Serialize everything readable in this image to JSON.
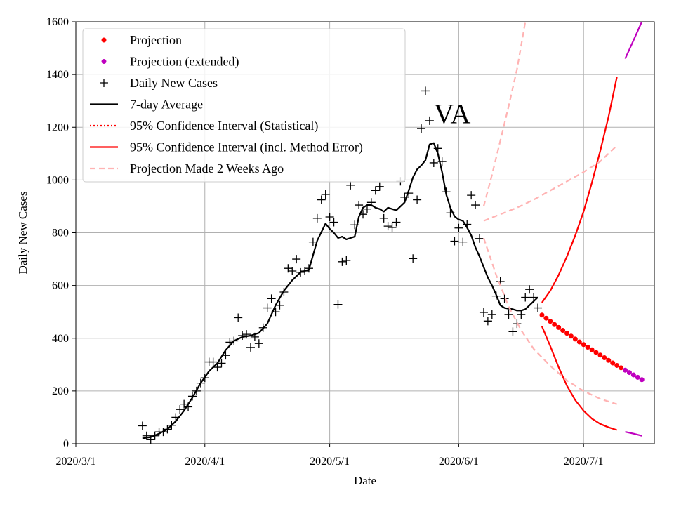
{
  "chart_data": {
    "type": "line",
    "title": "",
    "annotation": "VA",
    "xlabel": "Date",
    "ylabel": "Daily New Cases",
    "x_axis": {
      "start_date": "2020-03-01",
      "end_date": "2020-07-18",
      "unit": "days since 2020-03-01",
      "xlim": [
        0,
        139
      ]
    },
    "ylim": [
      0,
      1600
    ],
    "grid": true,
    "legend_position": "top-left",
    "x_ticks": [
      {
        "label": "2020/3/1",
        "value": 0
      },
      {
        "label": "2020/4/1",
        "value": 31
      },
      {
        "label": "2020/5/1",
        "value": 61
      },
      {
        "label": "2020/6/1",
        "value": 92
      },
      {
        "label": "2020/7/1",
        "value": 122
      }
    ],
    "y_ticks": [
      {
        "label": "0",
        "value": 0
      },
      {
        "label": "200",
        "value": 200
      },
      {
        "label": "400",
        "value": 400
      },
      {
        "label": "600",
        "value": 600
      },
      {
        "label": "800",
        "value": 800
      },
      {
        "label": "1000",
        "value": 1000
      },
      {
        "label": "1200",
        "value": 1200
      },
      {
        "label": "1400",
        "value": 1400
      },
      {
        "label": "1600",
        "value": 1600
      }
    ],
    "legend": [
      {
        "label": "Projection",
        "style": "dot",
        "color": "#ff0000"
      },
      {
        "label": "Projection (extended)",
        "style": "dot",
        "color": "#bf00bf"
      },
      {
        "label": "Daily New Cases",
        "style": "plus",
        "color": "#000000"
      },
      {
        "label": "7-day Average",
        "style": "line",
        "color": "#000000"
      },
      {
        "label": "95% Confidence Interval (Statistical)",
        "style": "dotted",
        "color": "#ff0000"
      },
      {
        "label": "95% Confidence Interval (incl. Method Error)",
        "style": "line",
        "color": "#ff0000"
      },
      {
        "label": "Projection Made 2 Weeks Ago",
        "style": "dashed",
        "color": "#ffb3b3"
      }
    ],
    "series": [
      {
        "name": "Daily New Cases",
        "style": "plus",
        "color": "#000000",
        "points": [
          [
            16,
            68
          ],
          [
            17,
            30
          ],
          [
            18,
            15
          ],
          [
            19,
            30
          ],
          [
            20,
            45
          ],
          [
            21,
            45
          ],
          [
            22,
            55
          ],
          [
            23,
            70
          ],
          [
            24,
            100
          ],
          [
            25,
            130
          ],
          [
            26,
            150
          ],
          [
            27,
            140
          ],
          [
            28,
            180
          ],
          [
            29,
            200
          ],
          [
            30,
            230
          ],
          [
            31,
            250
          ],
          [
            32,
            310
          ],
          [
            33,
            310
          ],
          [
            34,
            290
          ],
          [
            35,
            305
          ],
          [
            36,
            335
          ],
          [
            37,
            385
          ],
          [
            38,
            390
          ],
          [
            39,
            478
          ],
          [
            40,
            410
          ],
          [
            41,
            415
          ],
          [
            42,
            365
          ],
          [
            43,
            405
          ],
          [
            44,
            380
          ],
          [
            45,
            440
          ],
          [
            46,
            515
          ],
          [
            47,
            550
          ],
          [
            48,
            500
          ],
          [
            49,
            525
          ],
          [
            50,
            575
          ],
          [
            51,
            665
          ],
          [
            52,
            655
          ],
          [
            53,
            700
          ],
          [
            54,
            650
          ],
          [
            55,
            655
          ],
          [
            56,
            665
          ],
          [
            57,
            765
          ],
          [
            58,
            855
          ],
          [
            59,
            925
          ],
          [
            60,
            945
          ],
          [
            61,
            860
          ],
          [
            62,
            840
          ],
          [
            63,
            528
          ],
          [
            64,
            690
          ],
          [
            65,
            695
          ],
          [
            66,
            980
          ],
          [
            67,
            830
          ],
          [
            68,
            905
          ],
          [
            69,
            870
          ],
          [
            70,
            890
          ],
          [
            71,
            915
          ],
          [
            72,
            960
          ],
          [
            73,
            975
          ],
          [
            74,
            855
          ],
          [
            75,
            825
          ],
          [
            76,
            820
          ],
          [
            77,
            840
          ],
          [
            78,
            995
          ],
          [
            79,
            935
          ],
          [
            80,
            950
          ],
          [
            81,
            702
          ],
          [
            82,
            925
          ],
          [
            83,
            1195
          ],
          [
            84,
            1338
          ],
          [
            85,
            1225
          ],
          [
            86,
            1065
          ],
          [
            87,
            1120
          ],
          [
            88,
            1070
          ],
          [
            89,
            955
          ],
          [
            90,
            875
          ],
          [
            91,
            768
          ],
          [
            92,
            818
          ],
          [
            93,
            765
          ],
          [
            94,
            832
          ],
          [
            95,
            942
          ],
          [
            96,
            905
          ],
          [
            97,
            778
          ],
          [
            98,
            498
          ],
          [
            99,
            465
          ],
          [
            100,
            490
          ],
          [
            101,
            560
          ],
          [
            102,
            615
          ],
          [
            103,
            550
          ],
          [
            104,
            490
          ],
          [
            105,
            425
          ],
          [
            106,
            455
          ],
          [
            107,
            490
          ],
          [
            108,
            555
          ],
          [
            109,
            585
          ],
          [
            110,
            555
          ],
          [
            111,
            515
          ]
        ]
      },
      {
        "name": "7-day Average",
        "style": "line",
        "color": "#000000",
        "points": [
          [
            16,
            20
          ],
          [
            18,
            25
          ],
          [
            20,
            38
          ],
          [
            22,
            55
          ],
          [
            24,
            85
          ],
          [
            26,
            125
          ],
          [
            28,
            175
          ],
          [
            30,
            230
          ],
          [
            32,
            275
          ],
          [
            34,
            305
          ],
          [
            36,
            355
          ],
          [
            38,
            390
          ],
          [
            40,
            405
          ],
          [
            42,
            410
          ],
          [
            44,
            420
          ],
          [
            46,
            455
          ],
          [
            48,
            525
          ],
          [
            50,
            580
          ],
          [
            52,
            620
          ],
          [
            54,
            650
          ],
          [
            56,
            660
          ],
          [
            58,
            770
          ],
          [
            60,
            835
          ],
          [
            61,
            815
          ],
          [
            62,
            800
          ],
          [
            63,
            780
          ],
          [
            64,
            785
          ],
          [
            65,
            775
          ],
          [
            66,
            780
          ],
          [
            67,
            785
          ],
          [
            68,
            860
          ],
          [
            69,
            895
          ],
          [
            70,
            905
          ],
          [
            71,
            905
          ],
          [
            72,
            895
          ],
          [
            73,
            890
          ],
          [
            74,
            880
          ],
          [
            75,
            895
          ],
          [
            76,
            890
          ],
          [
            77,
            885
          ],
          [
            78,
            900
          ],
          [
            79,
            915
          ],
          [
            80,
            960
          ],
          [
            81,
            1010
          ],
          [
            82,
            1040
          ],
          [
            83,
            1055
          ],
          [
            84,
            1075
          ],
          [
            85,
            1135
          ],
          [
            86,
            1140
          ],
          [
            87,
            1100
          ],
          [
            88,
            1030
          ],
          [
            89,
            945
          ],
          [
            90,
            895
          ],
          [
            91,
            862
          ],
          [
            92,
            850
          ],
          [
            93,
            845
          ],
          [
            94,
            820
          ],
          [
            95,
            790
          ],
          [
            96,
            745
          ],
          [
            97,
            710
          ],
          [
            98,
            670
          ],
          [
            99,
            630
          ],
          [
            100,
            600
          ],
          [
            101,
            565
          ],
          [
            102,
            525
          ],
          [
            103,
            515
          ],
          [
            104,
            512
          ],
          [
            105,
            510
          ],
          [
            106,
            505
          ],
          [
            107,
            505
          ],
          [
            108,
            510
          ],
          [
            109,
            525
          ],
          [
            110,
            540
          ],
          [
            111,
            555
          ]
        ]
      },
      {
        "name": "Projection",
        "style": "dot",
        "color": "#ff0000",
        "points": [
          [
            112,
            488
          ],
          [
            113,
            476
          ],
          [
            114,
            464
          ],
          [
            115,
            452
          ],
          [
            116,
            441
          ],
          [
            117,
            430
          ],
          [
            118,
            419
          ],
          [
            119,
            408
          ],
          [
            120,
            397
          ],
          [
            121,
            386
          ],
          [
            122,
            376
          ],
          [
            123,
            366
          ],
          [
            124,
            356
          ],
          [
            125,
            346
          ],
          [
            126,
            336
          ],
          [
            127,
            326
          ],
          [
            128,
            316
          ],
          [
            129,
            306
          ],
          [
            130,
            297
          ],
          [
            131,
            288
          ]
        ]
      },
      {
        "name": "Projection (extended)",
        "style": "dot",
        "color": "#bf00bf",
        "points": [
          [
            132,
            279
          ],
          [
            133,
            270
          ],
          [
            134,
            261
          ],
          [
            135,
            252
          ],
          [
            136,
            243
          ]
        ]
      },
      {
        "name": "95% CI (incl. Method Error) upper",
        "style": "line",
        "color": "#ff0000",
        "points": [
          [
            112,
            535
          ],
          [
            114,
            580
          ],
          [
            116,
            640
          ],
          [
            118,
            710
          ],
          [
            120,
            790
          ],
          [
            122,
            880
          ],
          [
            124,
            990
          ],
          [
            126,
            1110
          ],
          [
            128,
            1240
          ],
          [
            130,
            1390
          ]
        ]
      },
      {
        "name": "95% CI (incl. Method Error) lower",
        "style": "line",
        "color": "#ff0000",
        "points": [
          [
            112,
            445
          ],
          [
            114,
            370
          ],
          [
            116,
            290
          ],
          [
            118,
            220
          ],
          [
            120,
            165
          ],
          [
            122,
            125
          ],
          [
            124,
            95
          ],
          [
            126,
            75
          ],
          [
            128,
            62
          ],
          [
            130,
            52
          ]
        ]
      },
      {
        "name": "95% CI upper (extended)",
        "style": "line",
        "color": "#bf00bf",
        "points": [
          [
            132,
            1460
          ],
          [
            134,
            1530
          ],
          [
            136,
            1600
          ]
        ]
      },
      {
        "name": "95% CI lower (extended)",
        "style": "line",
        "color": "#bf00bf",
        "points": [
          [
            132,
            45
          ],
          [
            134,
            38
          ],
          [
            136,
            30
          ]
        ]
      },
      {
        "name": "Projection Made 2 Weeks Ago (center)",
        "style": "dashed",
        "color": "#ffb3b3",
        "points": [
          [
            98,
            845
          ],
          [
            102,
            870
          ],
          [
            106,
            895
          ],
          [
            110,
            925
          ],
          [
            114,
            960
          ],
          [
            118,
            995
          ],
          [
            122,
            1030
          ],
          [
            126,
            1070
          ],
          [
            130,
            1130
          ]
        ]
      },
      {
        "name": "Projection Made 2 Weeks Ago (upper)",
        "style": "dashed",
        "color": "#ffb3b3",
        "points": [
          [
            98,
            900
          ],
          [
            100,
            1020
          ],
          [
            102,
            1150
          ],
          [
            104,
            1280
          ],
          [
            106,
            1420
          ],
          [
            108,
            1600
          ]
        ]
      },
      {
        "name": "Projection Made 2 Weeks Ago (lower)",
        "style": "dashed",
        "color": "#ffb3b3",
        "points": [
          [
            98,
            780
          ],
          [
            101,
            640
          ],
          [
            104,
            520
          ],
          [
            107,
            430
          ],
          [
            110,
            360
          ],
          [
            114,
            295
          ],
          [
            118,
            240
          ],
          [
            122,
            200
          ],
          [
            126,
            170
          ],
          [
            130,
            150
          ]
        ]
      }
    ]
  }
}
